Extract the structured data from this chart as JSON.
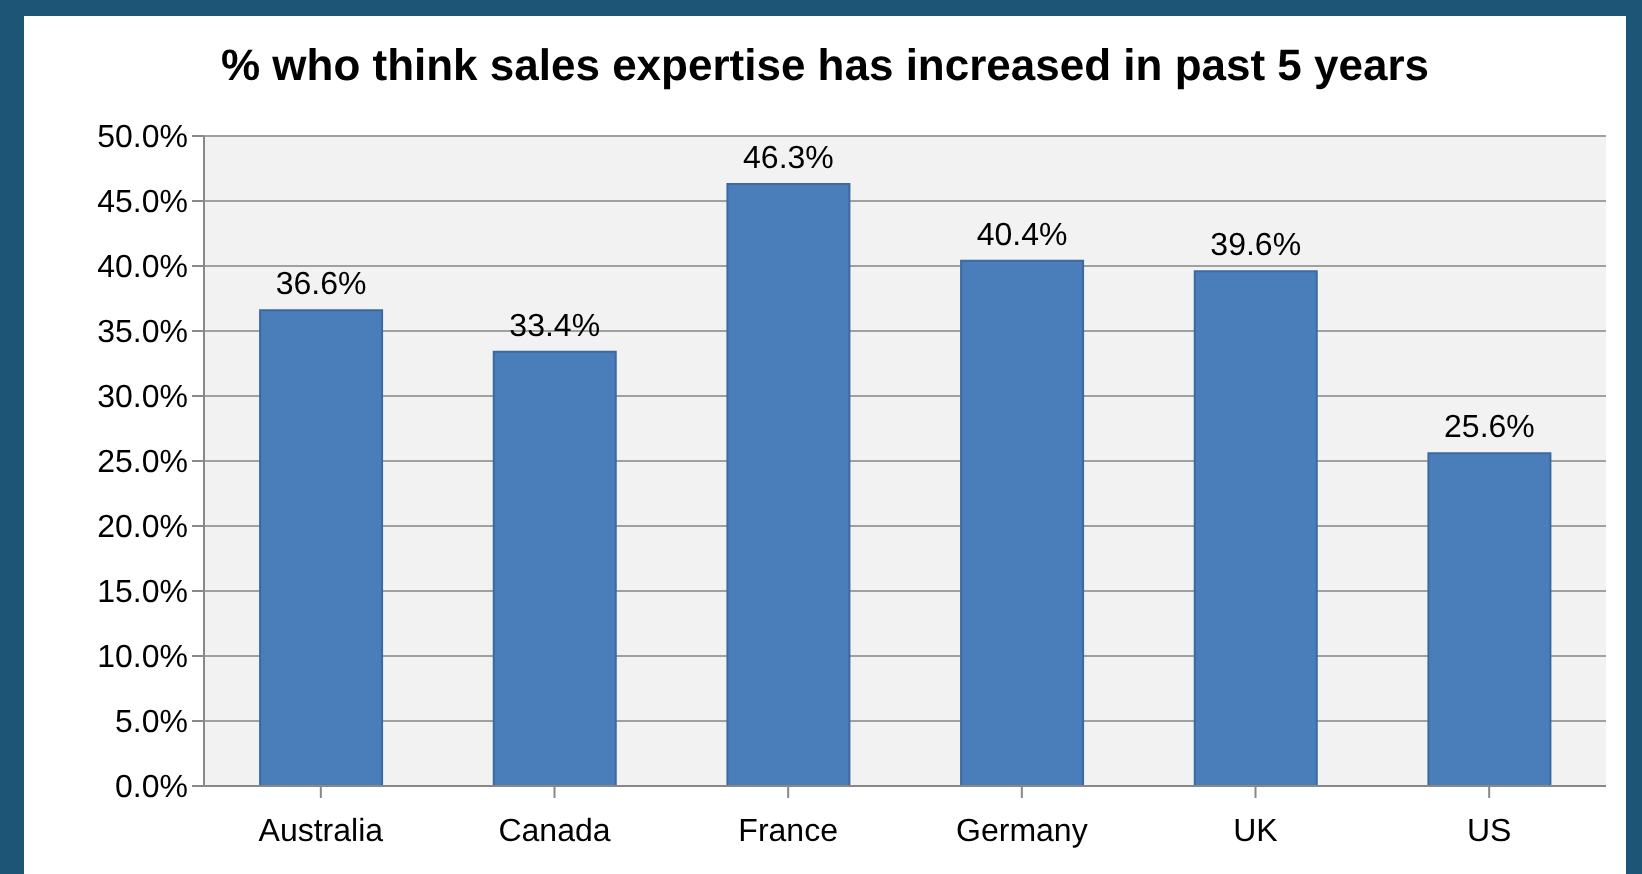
{
  "chart_data": {
    "type": "bar",
    "title": "% who think sales expertise has increased in past 5 years",
    "categories": [
      "Australia",
      "Canada",
      "France",
      "Germany",
      "UK",
      "US"
    ],
    "values": [
      36.6,
      33.4,
      46.3,
      40.4,
      39.6,
      25.6
    ],
    "value_labels": [
      "36.6%",
      "33.4%",
      "46.3%",
      "40.4%",
      "39.6%",
      "25.6%"
    ],
    "color": "#4a7ebb",
    "ylim": [
      0,
      50
    ],
    "yticks": [
      {
        "value": 0,
        "label": "0.0%"
      },
      {
        "value": 5,
        "label": "5.0%"
      },
      {
        "value": 10,
        "label": "10.0%"
      },
      {
        "value": 15,
        "label": "15.0%"
      },
      {
        "value": 20,
        "label": "20.0%"
      },
      {
        "value": 25,
        "label": "25.0%"
      },
      {
        "value": 30,
        "label": "30.0%"
      },
      {
        "value": 35,
        "label": "35.0%"
      },
      {
        "value": 40,
        "label": "40.0%"
      },
      {
        "value": 45,
        "label": "45.0%"
      },
      {
        "value": 50,
        "label": "50.0%"
      }
    ],
    "grid": "y",
    "legend": false
  }
}
